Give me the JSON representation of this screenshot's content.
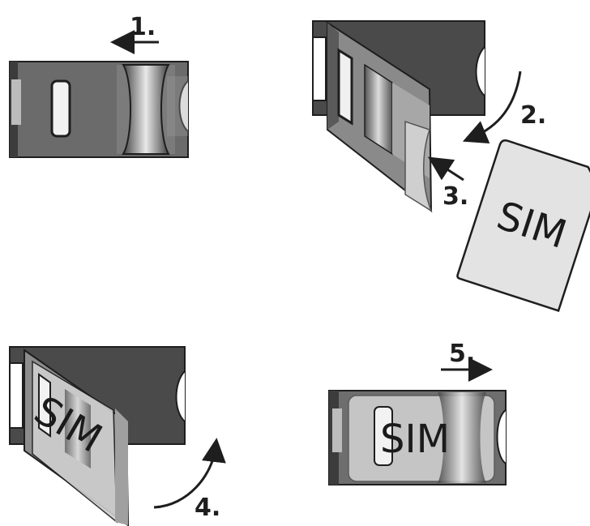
{
  "diagram": {
    "steps": [
      {
        "label": "1.",
        "direction": "left"
      },
      {
        "label": "2.",
        "direction": "down-left"
      },
      {
        "label": "3.",
        "direction": "up-left"
      },
      {
        "label": "4.",
        "direction": "up-right"
      },
      {
        "label": "5.",
        "direction": "right"
      }
    ],
    "sim_card_label": "SIM",
    "colors": {
      "holder_dark": "#4a4a4a",
      "holder_mid": "#6d6d6d",
      "holder_light": "#9a9a9a",
      "metal_highlight": "#e8e8e8",
      "card_fill": "#e3e3e3",
      "outline": "#1e1e1e"
    }
  }
}
